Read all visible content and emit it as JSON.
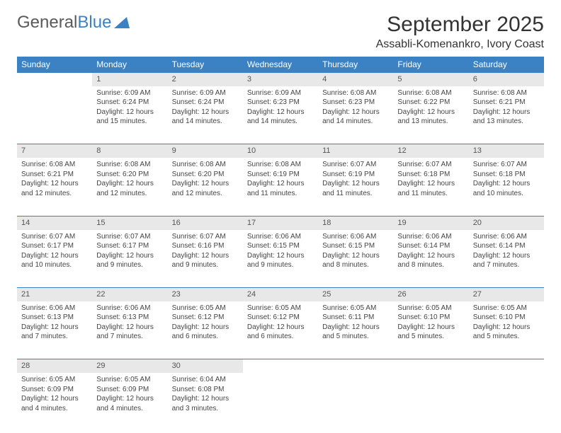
{
  "brand": {
    "name_part1": "General",
    "name_part2": "Blue"
  },
  "title": "September 2025",
  "location": "Assabli-Komenankro, Ivory Coast",
  "colors": {
    "header_bg": "#3b82c4",
    "header_text": "#ffffff",
    "daynum_bg": "#e8e8e8",
    "border": "#3b82c4",
    "text": "#333333",
    "muted": "#555555",
    "background": "#ffffff"
  },
  "fonts": {
    "title_size": 30,
    "location_size": 16,
    "th_size": 12,
    "daynum_size": 11,
    "cell_size": 10
  },
  "days_of_week": [
    "Sunday",
    "Monday",
    "Tuesday",
    "Wednesday",
    "Thursday",
    "Friday",
    "Saturday"
  ],
  "weeks": [
    {
      "nums": [
        "",
        "1",
        "2",
        "3",
        "4",
        "5",
        "6"
      ],
      "cells": [
        null,
        {
          "sunrise": "Sunrise: 6:09 AM",
          "sunset": "Sunset: 6:24 PM",
          "d1": "Daylight: 12 hours",
          "d2": "and 15 minutes."
        },
        {
          "sunrise": "Sunrise: 6:09 AM",
          "sunset": "Sunset: 6:24 PM",
          "d1": "Daylight: 12 hours",
          "d2": "and 14 minutes."
        },
        {
          "sunrise": "Sunrise: 6:09 AM",
          "sunset": "Sunset: 6:23 PM",
          "d1": "Daylight: 12 hours",
          "d2": "and 14 minutes."
        },
        {
          "sunrise": "Sunrise: 6:08 AM",
          "sunset": "Sunset: 6:23 PM",
          "d1": "Daylight: 12 hours",
          "d2": "and 14 minutes."
        },
        {
          "sunrise": "Sunrise: 6:08 AM",
          "sunset": "Sunset: 6:22 PM",
          "d1": "Daylight: 12 hours",
          "d2": "and 13 minutes."
        },
        {
          "sunrise": "Sunrise: 6:08 AM",
          "sunset": "Sunset: 6:21 PM",
          "d1": "Daylight: 12 hours",
          "d2": "and 13 minutes."
        }
      ]
    },
    {
      "nums": [
        "7",
        "8",
        "9",
        "10",
        "11",
        "12",
        "13"
      ],
      "cells": [
        {
          "sunrise": "Sunrise: 6:08 AM",
          "sunset": "Sunset: 6:21 PM",
          "d1": "Daylight: 12 hours",
          "d2": "and 12 minutes."
        },
        {
          "sunrise": "Sunrise: 6:08 AM",
          "sunset": "Sunset: 6:20 PM",
          "d1": "Daylight: 12 hours",
          "d2": "and 12 minutes."
        },
        {
          "sunrise": "Sunrise: 6:08 AM",
          "sunset": "Sunset: 6:20 PM",
          "d1": "Daylight: 12 hours",
          "d2": "and 12 minutes."
        },
        {
          "sunrise": "Sunrise: 6:08 AM",
          "sunset": "Sunset: 6:19 PM",
          "d1": "Daylight: 12 hours",
          "d2": "and 11 minutes."
        },
        {
          "sunrise": "Sunrise: 6:07 AM",
          "sunset": "Sunset: 6:19 PM",
          "d1": "Daylight: 12 hours",
          "d2": "and 11 minutes."
        },
        {
          "sunrise": "Sunrise: 6:07 AM",
          "sunset": "Sunset: 6:18 PM",
          "d1": "Daylight: 12 hours",
          "d2": "and 11 minutes."
        },
        {
          "sunrise": "Sunrise: 6:07 AM",
          "sunset": "Sunset: 6:18 PM",
          "d1": "Daylight: 12 hours",
          "d2": "and 10 minutes."
        }
      ]
    },
    {
      "nums": [
        "14",
        "15",
        "16",
        "17",
        "18",
        "19",
        "20"
      ],
      "cells": [
        {
          "sunrise": "Sunrise: 6:07 AM",
          "sunset": "Sunset: 6:17 PM",
          "d1": "Daylight: 12 hours",
          "d2": "and 10 minutes."
        },
        {
          "sunrise": "Sunrise: 6:07 AM",
          "sunset": "Sunset: 6:17 PM",
          "d1": "Daylight: 12 hours",
          "d2": "and 9 minutes."
        },
        {
          "sunrise": "Sunrise: 6:07 AM",
          "sunset": "Sunset: 6:16 PM",
          "d1": "Daylight: 12 hours",
          "d2": "and 9 minutes."
        },
        {
          "sunrise": "Sunrise: 6:06 AM",
          "sunset": "Sunset: 6:15 PM",
          "d1": "Daylight: 12 hours",
          "d2": "and 9 minutes."
        },
        {
          "sunrise": "Sunrise: 6:06 AM",
          "sunset": "Sunset: 6:15 PM",
          "d1": "Daylight: 12 hours",
          "d2": "and 8 minutes."
        },
        {
          "sunrise": "Sunrise: 6:06 AM",
          "sunset": "Sunset: 6:14 PM",
          "d1": "Daylight: 12 hours",
          "d2": "and 8 minutes."
        },
        {
          "sunrise": "Sunrise: 6:06 AM",
          "sunset": "Sunset: 6:14 PM",
          "d1": "Daylight: 12 hours",
          "d2": "and 7 minutes."
        }
      ]
    },
    {
      "nums": [
        "21",
        "22",
        "23",
        "24",
        "25",
        "26",
        "27"
      ],
      "cells": [
        {
          "sunrise": "Sunrise: 6:06 AM",
          "sunset": "Sunset: 6:13 PM",
          "d1": "Daylight: 12 hours",
          "d2": "and 7 minutes."
        },
        {
          "sunrise": "Sunrise: 6:06 AM",
          "sunset": "Sunset: 6:13 PM",
          "d1": "Daylight: 12 hours",
          "d2": "and 7 minutes."
        },
        {
          "sunrise": "Sunrise: 6:05 AM",
          "sunset": "Sunset: 6:12 PM",
          "d1": "Daylight: 12 hours",
          "d2": "and 6 minutes."
        },
        {
          "sunrise": "Sunrise: 6:05 AM",
          "sunset": "Sunset: 6:12 PM",
          "d1": "Daylight: 12 hours",
          "d2": "and 6 minutes."
        },
        {
          "sunrise": "Sunrise: 6:05 AM",
          "sunset": "Sunset: 6:11 PM",
          "d1": "Daylight: 12 hours",
          "d2": "and 5 minutes."
        },
        {
          "sunrise": "Sunrise: 6:05 AM",
          "sunset": "Sunset: 6:10 PM",
          "d1": "Daylight: 12 hours",
          "d2": "and 5 minutes."
        },
        {
          "sunrise": "Sunrise: 6:05 AM",
          "sunset": "Sunset: 6:10 PM",
          "d1": "Daylight: 12 hours",
          "d2": "and 5 minutes."
        }
      ]
    },
    {
      "nums": [
        "28",
        "29",
        "30",
        "",
        "",
        "",
        ""
      ],
      "cells": [
        {
          "sunrise": "Sunrise: 6:05 AM",
          "sunset": "Sunset: 6:09 PM",
          "d1": "Daylight: 12 hours",
          "d2": "and 4 minutes."
        },
        {
          "sunrise": "Sunrise: 6:05 AM",
          "sunset": "Sunset: 6:09 PM",
          "d1": "Daylight: 12 hours",
          "d2": "and 4 minutes."
        },
        {
          "sunrise": "Sunrise: 6:04 AM",
          "sunset": "Sunset: 6:08 PM",
          "d1": "Daylight: 12 hours",
          "d2": "and 3 minutes."
        },
        null,
        null,
        null,
        null
      ]
    }
  ]
}
